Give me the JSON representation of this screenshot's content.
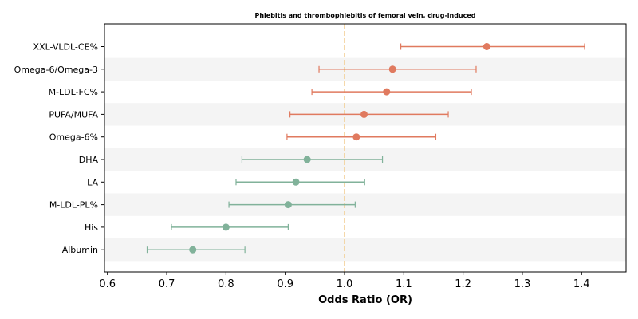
{
  "chart_data": {
    "type": "forest",
    "title": "Phlebitis and thrombophlebitis of femoral vein, drug-induced",
    "xlabel": "Odds Ratio (OR)",
    "ylabel": "",
    "xlim": [
      0.595,
      1.475
    ],
    "x_ticks": [
      "0.6",
      "0.7",
      "0.8",
      "0.9",
      "1.0",
      "1.1",
      "1.2",
      "1.3",
      "1.4"
    ],
    "x_tick_values": [
      0.6,
      0.7,
      0.8,
      0.9,
      1.0,
      1.1,
      1.2,
      1.3,
      1.4
    ],
    "reference_line": 1.0,
    "grid": false,
    "colors": {
      "risk": "#e07a5f",
      "protective": "#81b29a",
      "reference": "#f2cc8f",
      "band": "#f4f4f4"
    },
    "rows": [
      {
        "label": "XXL-VLDL-CE%",
        "or": 1.24,
        "low": 1.095,
        "high": 1.405
      },
      {
        "label": "Omega-6/Omega-3",
        "or": 1.081,
        "low": 0.957,
        "high": 1.222
      },
      {
        "label": "M-LDL-FC%",
        "or": 1.071,
        "low": 0.945,
        "high": 1.214
      },
      {
        "label": "PUFA/MUFA",
        "or": 1.033,
        "low": 0.908,
        "high": 1.175
      },
      {
        "label": "Omega-6%",
        "or": 1.02,
        "low": 0.903,
        "high": 1.154
      },
      {
        "label": "DHA",
        "or": 0.937,
        "low": 0.827,
        "high": 1.064
      },
      {
        "label": "LA",
        "or": 0.918,
        "low": 0.817,
        "high": 1.034
      },
      {
        "label": "M-LDL-PL%",
        "or": 0.905,
        "low": 0.805,
        "high": 1.018
      },
      {
        "label": "His",
        "or": 0.8,
        "low": 0.708,
        "high": 0.905
      },
      {
        "label": "Albumin",
        "or": 0.744,
        "low": 0.667,
        "high": 0.832
      }
    ]
  }
}
